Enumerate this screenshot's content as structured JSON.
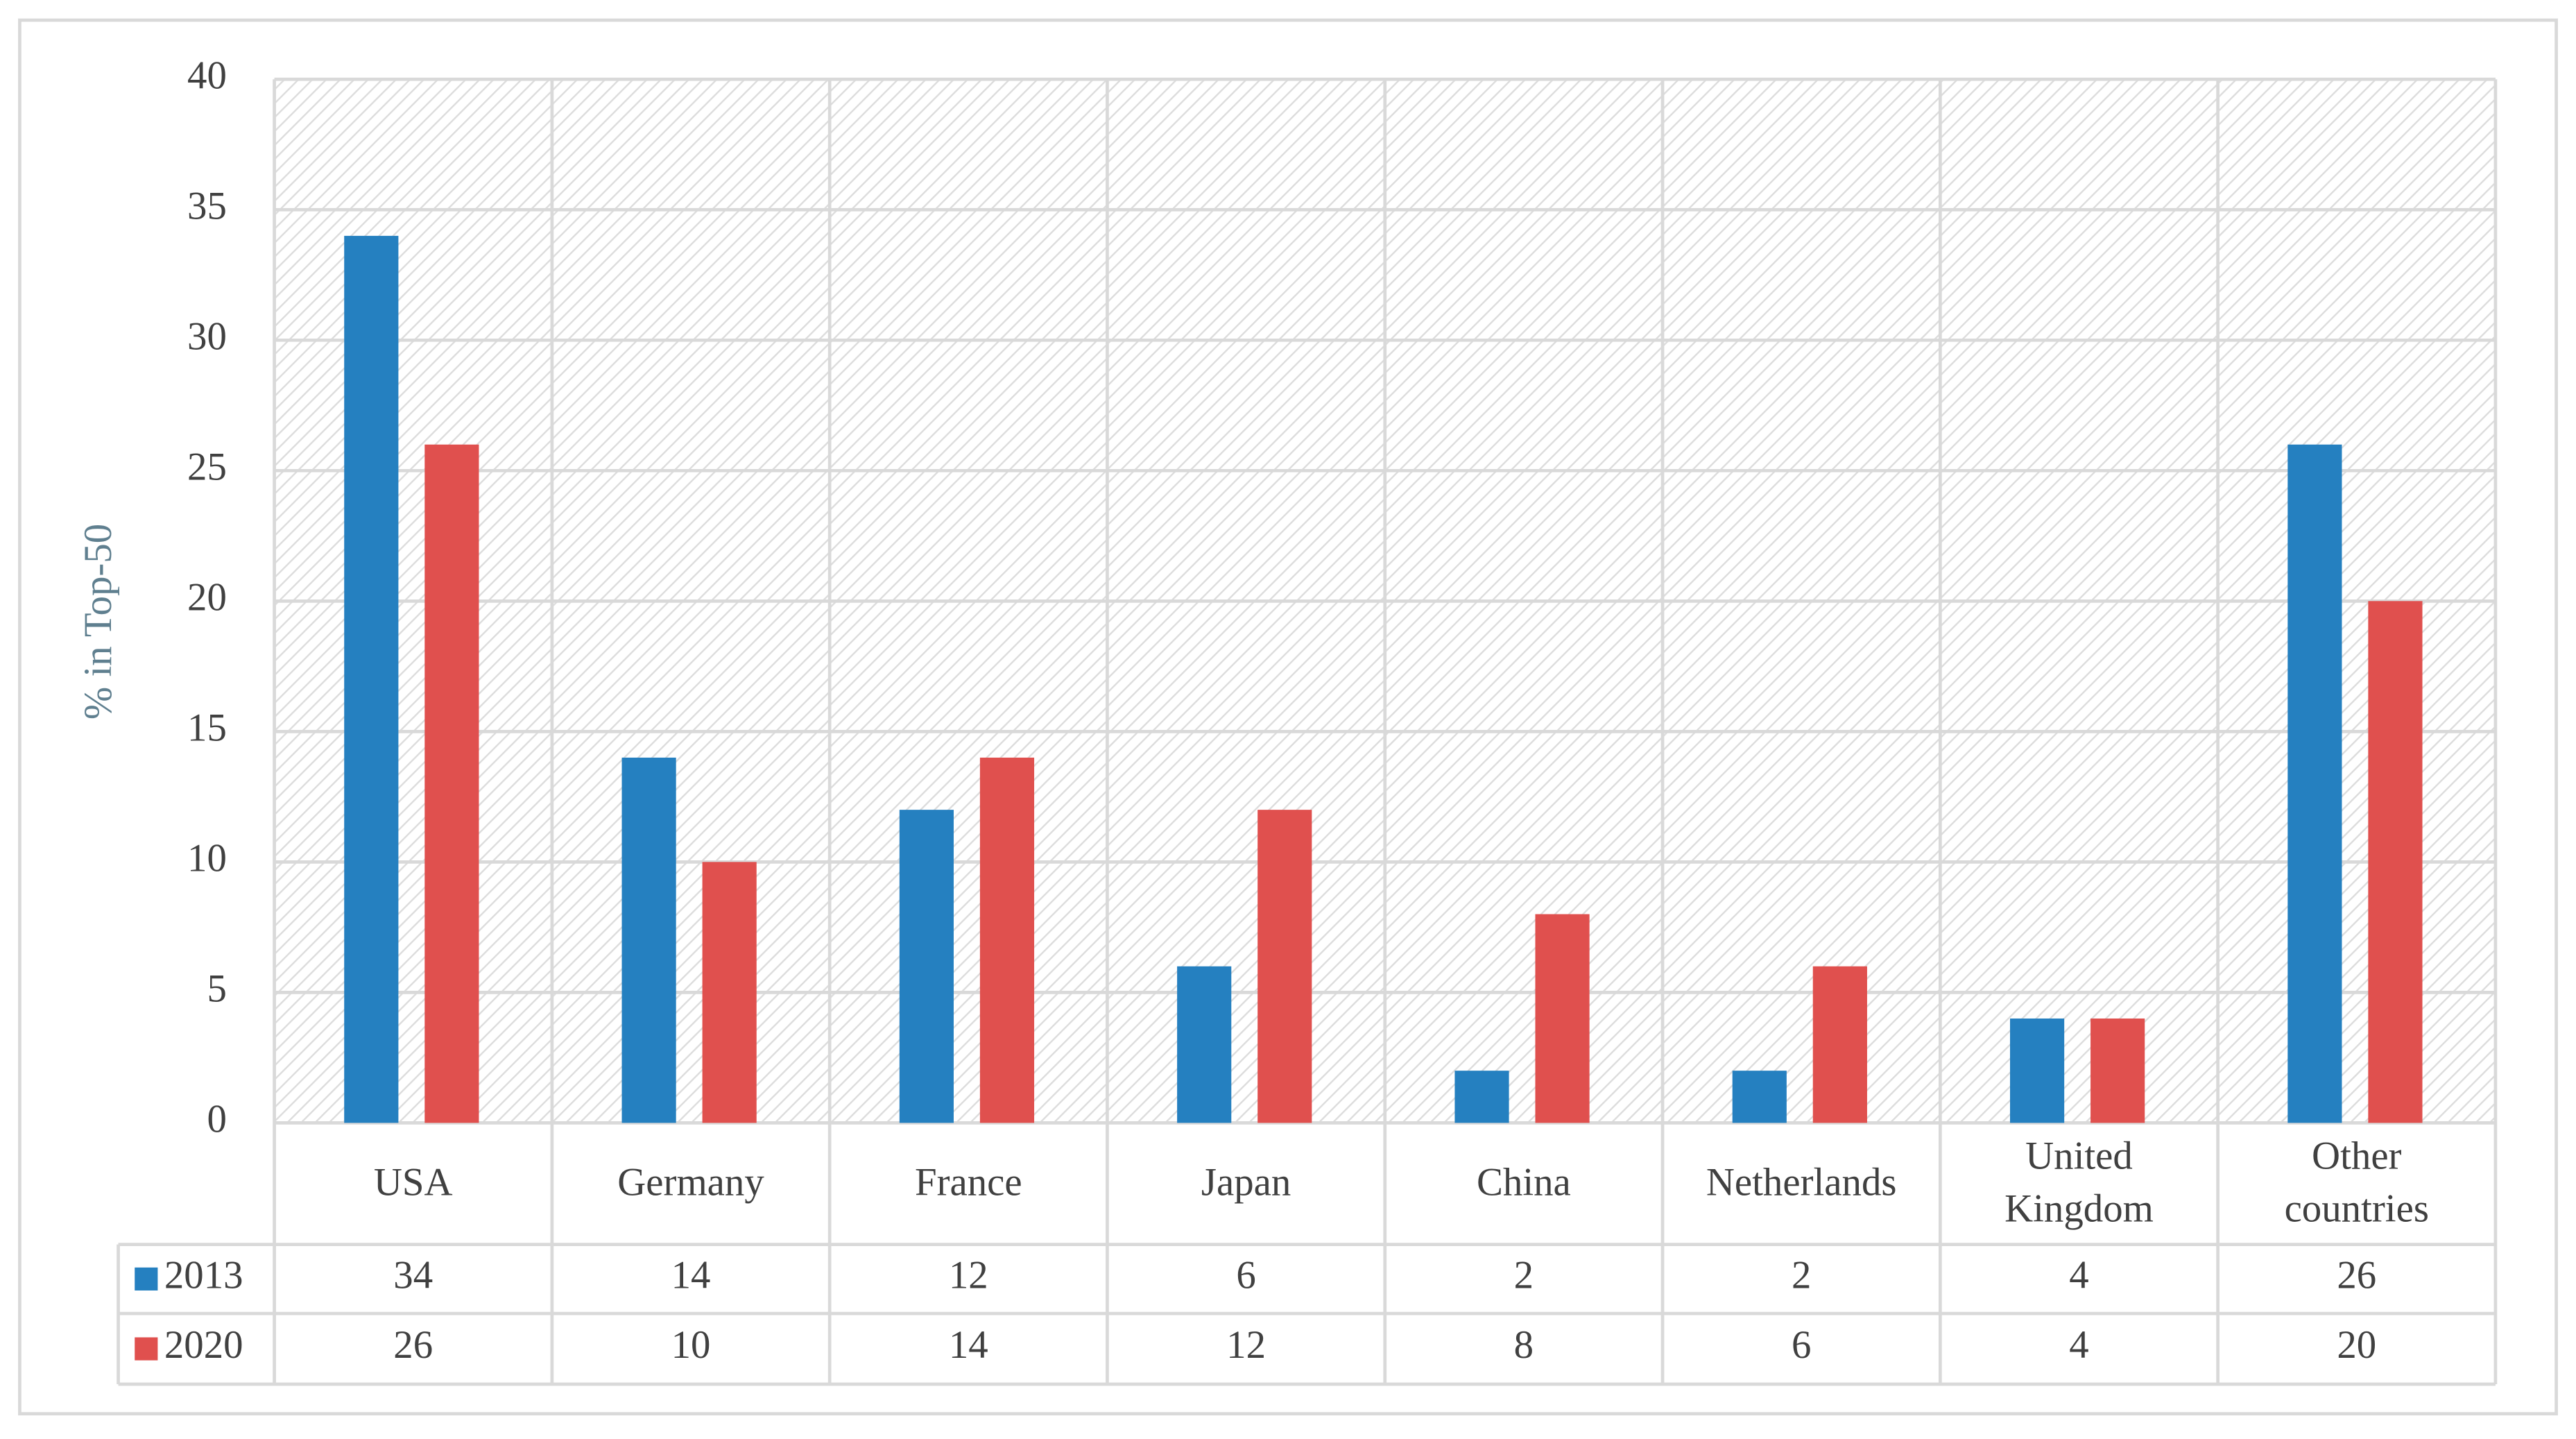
{
  "chart_data": {
    "type": "bar",
    "y_label": "% in Top-50",
    "categories": [
      "USA",
      "Germany",
      "France",
      "Japan",
      "China",
      "Netherlands",
      "United Kingdom",
      "Other countries"
    ],
    "series": [
      {
        "name": "2013",
        "color": "#2580c0",
        "values": [
          34,
          14,
          12,
          6,
          2,
          2,
          4,
          26
        ]
      },
      {
        "name": "2020",
        "color": "#e0504e",
        "values": [
          26,
          10,
          14,
          12,
          8,
          6,
          4,
          20
        ]
      }
    ],
    "ylim": [
      0,
      40
    ],
    "yticks": [
      0,
      5,
      10,
      15,
      20,
      25,
      30,
      35,
      40
    ],
    "grid": true,
    "data_table": true
  }
}
